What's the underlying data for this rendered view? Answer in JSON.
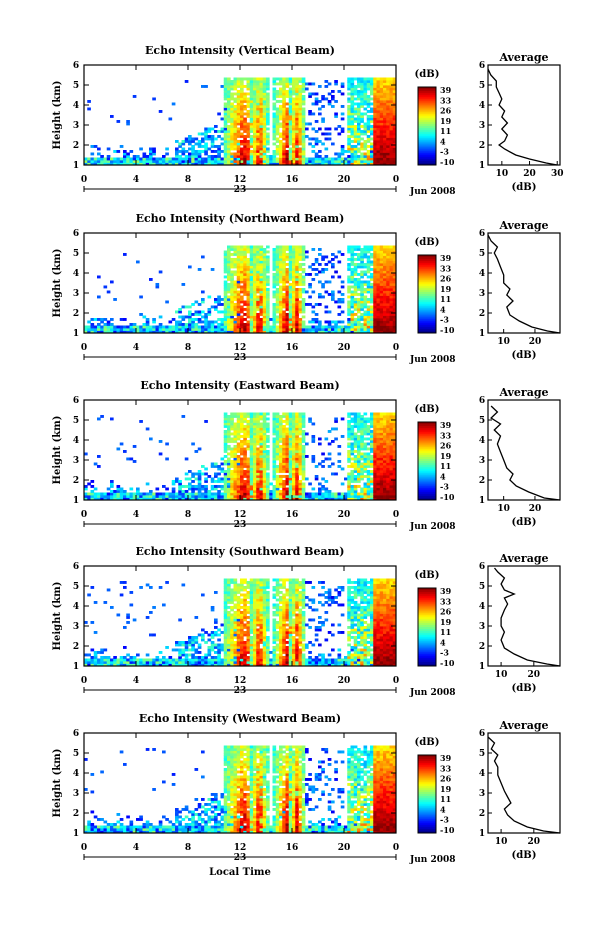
{
  "chart_data": [
    {
      "type": "heatmap",
      "title": "Echo Intensity (Vertical Beam)",
      "ylabel": "Height (km)",
      "xticks": [
        "0",
        "4",
        "8",
        "12",
        "16",
        "20",
        "0"
      ],
      "date_label": "23",
      "month_label": "Jun 2008",
      "ylim": [
        1,
        6
      ],
      "yticks": [
        "1",
        "2",
        "3",
        "4",
        "5",
        "6"
      ],
      "colorbar": {
        "label": "(dB)",
        "ticks": [
          "39",
          "33",
          "26",
          "19",
          "11",
          "4",
          "-3",
          "-10"
        ]
      },
      "average": {
        "title": "Average",
        "xlabel": "(dB)",
        "xticks": [
          "10",
          "20",
          "30"
        ],
        "xlim": [
          5,
          31
        ],
        "profile": [
          [
            30,
            1.0
          ],
          [
            26,
            1.1
          ],
          [
            20,
            1.3
          ],
          [
            15,
            1.5
          ],
          [
            11,
            1.8
          ],
          [
            9,
            2.0
          ],
          [
            11,
            2.2
          ],
          [
            12,
            2.5
          ],
          [
            10,
            2.8
          ],
          [
            12,
            3.1
          ],
          [
            10,
            3.4
          ],
          [
            11,
            3.7
          ],
          [
            9,
            4.0
          ],
          [
            10,
            4.3
          ],
          [
            9,
            4.6
          ],
          [
            8,
            4.9
          ],
          [
            8,
            5.2
          ],
          [
            6,
            5.5
          ],
          [
            5,
            5.8
          ]
        ]
      }
    },
    {
      "type": "heatmap",
      "title": "Echo Intensity (Northward Beam)",
      "ylabel": "Height (km)",
      "xticks": [
        "0",
        "4",
        "8",
        "12",
        "16",
        "20",
        "0"
      ],
      "date_label": "23",
      "month_label": "Jun 2008",
      "ylim": [
        1,
        6
      ],
      "yticks": [
        "1",
        "2",
        "3",
        "4",
        "5",
        "6"
      ],
      "colorbar": {
        "label": "(dB)",
        "ticks": [
          "39",
          "33",
          "26",
          "19",
          "11",
          "4",
          "-3",
          "-10"
        ]
      },
      "average": {
        "title": "Average",
        "xlabel": "(dB)",
        "xticks": [
          "10",
          "20"
        ],
        "xlim": [
          5,
          28
        ],
        "profile": [
          [
            28,
            1.0
          ],
          [
            24,
            1.1
          ],
          [
            19,
            1.3
          ],
          [
            15,
            1.6
          ],
          [
            12,
            1.9
          ],
          [
            11,
            2.3
          ],
          [
            13,
            2.6
          ],
          [
            11,
            2.9
          ],
          [
            12,
            3.2
          ],
          [
            10,
            3.5
          ],
          [
            10,
            3.9
          ],
          [
            9,
            4.3
          ],
          [
            8,
            4.7
          ],
          [
            7,
            5.0
          ],
          [
            8,
            5.3
          ],
          [
            6,
            5.6
          ],
          [
            5,
            5.9
          ]
        ]
      }
    },
    {
      "type": "heatmap",
      "title": "Echo Intensity (Eastward Beam)",
      "ylabel": "Height (km)",
      "xticks": [
        "0",
        "4",
        "8",
        "12",
        "16",
        "20",
        "0"
      ],
      "date_label": "23",
      "month_label": "Jun 2008",
      "ylim": [
        1,
        6
      ],
      "yticks": [
        "1",
        "2",
        "3",
        "4",
        "5",
        "6"
      ],
      "colorbar": {
        "label": "(dB)",
        "ticks": [
          "39",
          "33",
          "26",
          "19",
          "11",
          "4",
          "-3",
          "-10"
        ]
      },
      "average": {
        "title": "Average",
        "xlabel": "(dB)",
        "xticks": [
          "10",
          "20"
        ],
        "xlim": [
          5,
          28
        ],
        "profile": [
          [
            28,
            1.0
          ],
          [
            23,
            1.1
          ],
          [
            18,
            1.4
          ],
          [
            14,
            1.7
          ],
          [
            12,
            2.0
          ],
          [
            13,
            2.3
          ],
          [
            11,
            2.6
          ],
          [
            10,
            3.0
          ],
          [
            9,
            3.4
          ],
          [
            8,
            3.8
          ],
          [
            9,
            4.2
          ],
          [
            7,
            4.5
          ],
          [
            9,
            4.8
          ],
          [
            6,
            5.1
          ],
          [
            8,
            5.4
          ],
          [
            6,
            5.7
          ]
        ]
      }
    },
    {
      "type": "heatmap",
      "title": "Echo Intensity (Southward Beam)",
      "ylabel": "Height (km)",
      "xticks": [
        "0",
        "4",
        "8",
        "12",
        "16",
        "20",
        "0"
      ],
      "date_label": "23",
      "month_label": "Jun 2008",
      "ylim": [
        1,
        6
      ],
      "yticks": [
        "1",
        "2",
        "3",
        "4",
        "5",
        "6"
      ],
      "colorbar": {
        "label": "(dB)",
        "ticks": [
          "39",
          "33",
          "26",
          "19",
          "11",
          "4",
          "-3",
          "-10"
        ]
      },
      "average": {
        "title": "Average",
        "xlabel": "(dB)",
        "xticks": [
          "10",
          "20"
        ],
        "xlim": [
          6,
          28
        ],
        "profile": [
          [
            28,
            1.0
          ],
          [
            24,
            1.1
          ],
          [
            18,
            1.3
          ],
          [
            14,
            1.6
          ],
          [
            11,
            1.9
          ],
          [
            10,
            2.3
          ],
          [
            11,
            2.7
          ],
          [
            10,
            3.0
          ],
          [
            10,
            3.4
          ],
          [
            11,
            3.8
          ],
          [
            12,
            4.1
          ],
          [
            11,
            4.4
          ],
          [
            14,
            4.6
          ],
          [
            11,
            4.8
          ],
          [
            10,
            5.1
          ],
          [
            11,
            5.4
          ],
          [
            9,
            5.7
          ],
          [
            8,
            5.9
          ]
        ]
      }
    },
    {
      "type": "heatmap",
      "title": "Echo Intensity (Westward Beam)",
      "ylabel": "Height (km)",
      "xticks": [
        "0",
        "4",
        "8",
        "12",
        "16",
        "20",
        "0"
      ],
      "date_label": "23",
      "month_label": "Jun 2008",
      "xlabel": "Local Time",
      "ylim": [
        1,
        6
      ],
      "yticks": [
        "1",
        "2",
        "3",
        "4",
        "5",
        "6"
      ],
      "colorbar": {
        "label": "(dB)",
        "ticks": [
          "39",
          "33",
          "26",
          "19",
          "11",
          "4",
          "-3",
          "-10"
        ]
      },
      "average": {
        "title": "Average",
        "xlabel": "(dB)",
        "xticks": [
          "10",
          "20"
        ],
        "xlim": [
          6,
          28
        ],
        "profile": [
          [
            28,
            1.0
          ],
          [
            23,
            1.1
          ],
          [
            18,
            1.3
          ],
          [
            14,
            1.6
          ],
          [
            12,
            1.9
          ],
          [
            11,
            2.2
          ],
          [
            13,
            2.5
          ],
          [
            12,
            2.8
          ],
          [
            11,
            3.1
          ],
          [
            10,
            3.5
          ],
          [
            9,
            3.9
          ],
          [
            9,
            4.3
          ],
          [
            8,
            4.6
          ],
          [
            9,
            4.9
          ],
          [
            7,
            5.2
          ],
          [
            8,
            5.5
          ],
          [
            6,
            5.8
          ]
        ]
      }
    }
  ]
}
